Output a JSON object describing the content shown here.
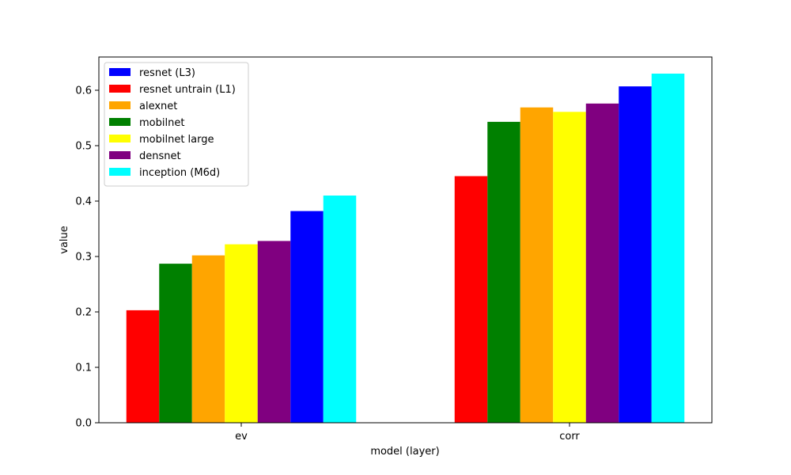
{
  "chart_data": {
    "type": "bar",
    "title": "",
    "xlabel": "model (layer)",
    "ylabel": "value",
    "categories": [
      "ev",
      "corr"
    ],
    "ylim": [
      0,
      0.66
    ],
    "yticks": [
      0.0,
      0.1,
      0.2,
      0.3,
      0.4,
      0.5,
      0.6
    ],
    "ytick_labels": [
      "0.0",
      "0.1",
      "0.2",
      "0.3",
      "0.4",
      "0.5",
      "0.6"
    ],
    "grid": false,
    "legend_position": "top-left",
    "legend_order": [
      "resnet (L3)",
      "resnet untrain (L1)",
      "alexnet",
      "mobilnet",
      "mobilnet large",
      "densnet",
      "inception (M6d)"
    ],
    "series": [
      {
        "name": "resnet untrain (L1)",
        "color": "#ff0000",
        "values": [
          0.203,
          0.445
        ]
      },
      {
        "name": "mobilnet",
        "color": "#008000",
        "values": [
          0.287,
          0.543
        ]
      },
      {
        "name": "alexnet",
        "color": "#ffa500",
        "values": [
          0.302,
          0.569
        ]
      },
      {
        "name": "mobilnet large",
        "color": "#ffff00",
        "values": [
          0.322,
          0.561
        ]
      },
      {
        "name": "densnet",
        "color": "#800080",
        "values": [
          0.328,
          0.576
        ]
      },
      {
        "name": "resnet (L3)",
        "color": "#0000ff",
        "values": [
          0.382,
          0.607
        ]
      },
      {
        "name": "inception (M6d)",
        "color": "#00ffff",
        "values": [
          0.41,
          0.63
        ]
      }
    ]
  }
}
